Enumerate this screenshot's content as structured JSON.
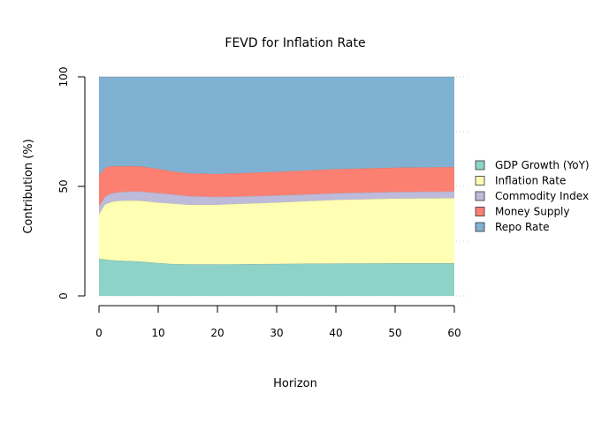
{
  "chart_data": {
    "type": "area",
    "stacked": true,
    "title": "FEVD for Inflation Rate",
    "xlabel": "Horizon",
    "ylabel": "Contribution (%)",
    "xlim": [
      0,
      60
    ],
    "ylim": [
      0,
      100
    ],
    "xticks": [
      0,
      10,
      20,
      30,
      40,
      50,
      60
    ],
    "yticks": [
      0,
      50,
      100
    ],
    "grid": true,
    "legend_position": "right",
    "x": [
      0,
      1,
      2,
      3,
      5,
      7,
      10,
      12,
      15,
      20,
      25,
      30,
      40,
      50,
      60
    ],
    "series": [
      {
        "name": "GDP Growth (YoY)",
        "color": "#8dd3c7",
        "values": [
          17.0,
          16.7,
          16.4,
          16.2,
          16.0,
          15.7,
          15.0,
          14.6,
          14.4,
          14.4,
          14.5,
          14.6,
          14.8,
          14.9,
          14.9
        ]
      },
      {
        "name": "Inflation Rate",
        "color": "#ffffb3",
        "values": [
          20.5,
          25.1,
          26.5,
          27.2,
          27.6,
          27.8,
          27.7,
          27.7,
          27.3,
          27.3,
          27.7,
          28.1,
          29.1,
          29.6,
          29.8
        ]
      },
      {
        "name": "Commodity Index",
        "color": "#bebada",
        "values": [
          3.5,
          3.6,
          3.8,
          3.9,
          4.1,
          4.2,
          4.3,
          4.2,
          3.9,
          3.5,
          3.3,
          3.2,
          3.0,
          3.0,
          3.0
        ]
      },
      {
        "name": "Money Supply",
        "color": "#fb8072",
        "values": [
          14.0,
          13.1,
          12.5,
          11.9,
          11.6,
          11.5,
          11.0,
          10.6,
          10.4,
          10.5,
          10.7,
          10.8,
          11.0,
          11.1,
          11.2
        ]
      },
      {
        "name": "Repo Rate",
        "color": "#80b1d3",
        "values": [
          45.0,
          41.5,
          40.8,
          40.8,
          40.7,
          40.8,
          42.0,
          42.9,
          44.0,
          44.3,
          43.8,
          43.3,
          42.1,
          41.4,
          41.1
        ]
      }
    ]
  }
}
